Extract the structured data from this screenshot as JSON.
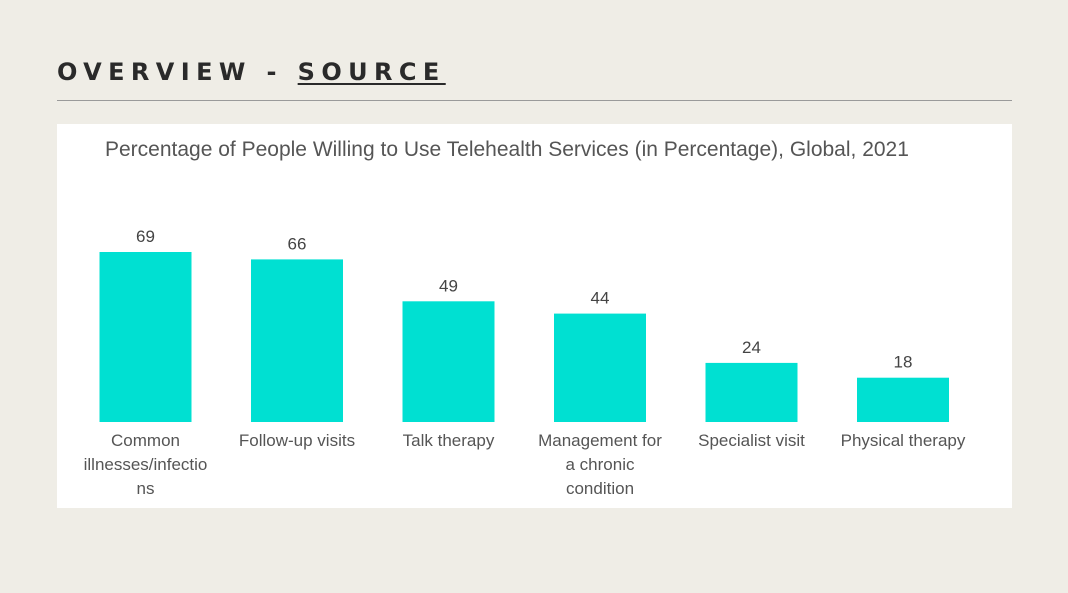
{
  "header": {
    "title": "OVERVIEW - ",
    "link": "SOURCE"
  },
  "chart_data": {
    "type": "bar",
    "title": "Percentage of People Willing to Use Telehealth Services (in Percentage), Global, 2021",
    "categories": [
      "Common illnesses/infections",
      "Follow-up visits",
      "Talk therapy",
      "Management for a chronic condition",
      "Specialist visit",
      "Physical therapy"
    ],
    "category_lines": [
      [
        "Common",
        "illnesses/infectio",
        "ns"
      ],
      [
        "Follow-up visits"
      ],
      [
        "Talk therapy"
      ],
      [
        "Management for",
        "a chronic",
        "condition"
      ],
      [
        "Specialist visit"
      ],
      [
        "Physical therapy"
      ]
    ],
    "values": [
      69,
      66,
      49,
      44,
      24,
      18
    ],
    "bar_color": "#00e0d2",
    "ylim": [
      0,
      69
    ],
    "xlabel": "",
    "ylabel": "",
    "grid": false,
    "legend": "none"
  }
}
